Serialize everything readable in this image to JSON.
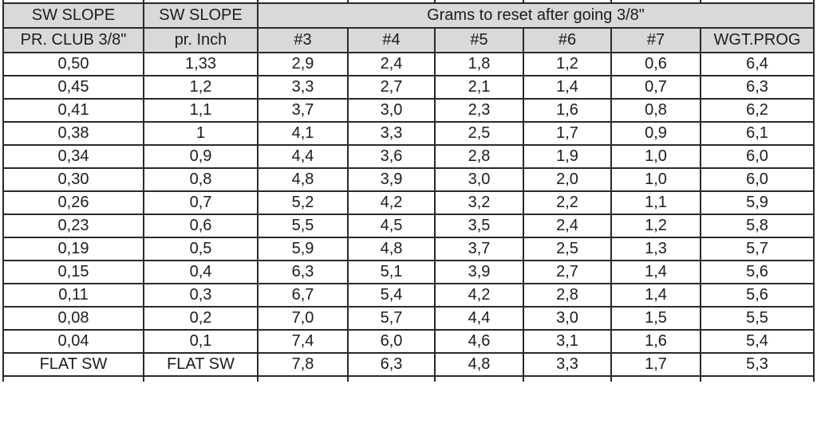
{
  "table": {
    "header_top": {
      "col1": "SW SLOPE",
      "col2": "SW SLOPE",
      "merged": "Grams to reset after going 3/8\""
    },
    "columns": [
      "PR. CLUB 3/8\"",
      "pr. Inch",
      "#3",
      "#4",
      "#5",
      "#6",
      "#7",
      "WGT.PROG"
    ],
    "rows": [
      [
        "0,50",
        "1,33",
        "2,9",
        "2,4",
        "1,8",
        "1,2",
        "0,6",
        "6,4"
      ],
      [
        "0,45",
        "1,2",
        "3,3",
        "2,7",
        "2,1",
        "1,4",
        "0,7",
        "6,3"
      ],
      [
        "0,41",
        "1,1",
        "3,7",
        "3,0",
        "2,3",
        "1,6",
        "0,8",
        "6,2"
      ],
      [
        "0,38",
        "1",
        "4,1",
        "3,3",
        "2,5",
        "1,7",
        "0,9",
        "6,1"
      ],
      [
        "0,34",
        "0,9",
        "4,4",
        "3,6",
        "2,8",
        "1,9",
        "1,0",
        "6,0"
      ],
      [
        "0,30",
        "0,8",
        "4,8",
        "3,9",
        "3,0",
        "2,0",
        "1,0",
        "6,0"
      ],
      [
        "0,26",
        "0,7",
        "5,2",
        "4,2",
        "3,2",
        "2,2",
        "1,1",
        "5,9"
      ],
      [
        "0,23",
        "0,6",
        "5,5",
        "4,5",
        "3,5",
        "2,4",
        "1,2",
        "5,8"
      ],
      [
        "0,19",
        "0,5",
        "5,9",
        "4,8",
        "3,7",
        "2,5",
        "1,3",
        "5,7"
      ],
      [
        "0,15",
        "0,4",
        "6,3",
        "5,1",
        "3,9",
        "2,7",
        "1,4",
        "5,6"
      ],
      [
        "0,11",
        "0,3",
        "6,7",
        "5,4",
        "4,2",
        "2,8",
        "1,4",
        "5,6"
      ],
      [
        "0,08",
        "0,2",
        "7,0",
        "5,7",
        "4,4",
        "3,0",
        "1,5",
        "5,5"
      ],
      [
        "0,04",
        "0,1",
        "7,4",
        "6,0",
        "4,6",
        "3,1",
        "1,6",
        "5,4"
      ],
      [
        "FLAT SW",
        "FLAT SW",
        "7,8",
        "6,3",
        "4,8",
        "3,3",
        "1,7",
        "5,3"
      ]
    ]
  },
  "colors": {
    "header_bg": "#d9d9d9",
    "border": "#2a2a2a",
    "cell_bg": "#ffffff",
    "text": "#1c1c1c"
  }
}
